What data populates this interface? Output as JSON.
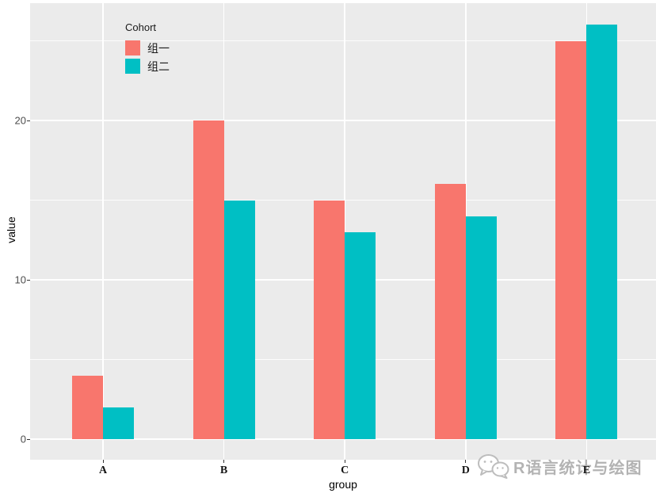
{
  "chart_data": {
    "type": "bar",
    "grouping": "dodge",
    "categories": [
      "A",
      "B",
      "C",
      "D",
      "E"
    ],
    "series": [
      {
        "name": "组一",
        "color": "#F8766D",
        "values": [
          4,
          20,
          15,
          16,
          25
        ]
      },
      {
        "name": "组二",
        "color": "#00BFC4",
        "values": [
          2,
          15,
          13,
          14,
          26
        ]
      }
    ],
    "title": "",
    "xlabel": "group",
    "ylabel": "value",
    "ylim": [
      -1.3,
      27.3
    ],
    "yticks": [
      0,
      10,
      20
    ],
    "minor_yticks": [
      5,
      15,
      25
    ],
    "grid": true,
    "legend_title": "Cohort",
    "legend_position": "inside-top-left",
    "panel_bg": "#EBEBEB",
    "grid_color": "#FFFFFF"
  },
  "legend": {
    "title": "Cohort"
  },
  "watermark": {
    "text": "R语言统计与绘图",
    "icon": "wechat-icon"
  }
}
